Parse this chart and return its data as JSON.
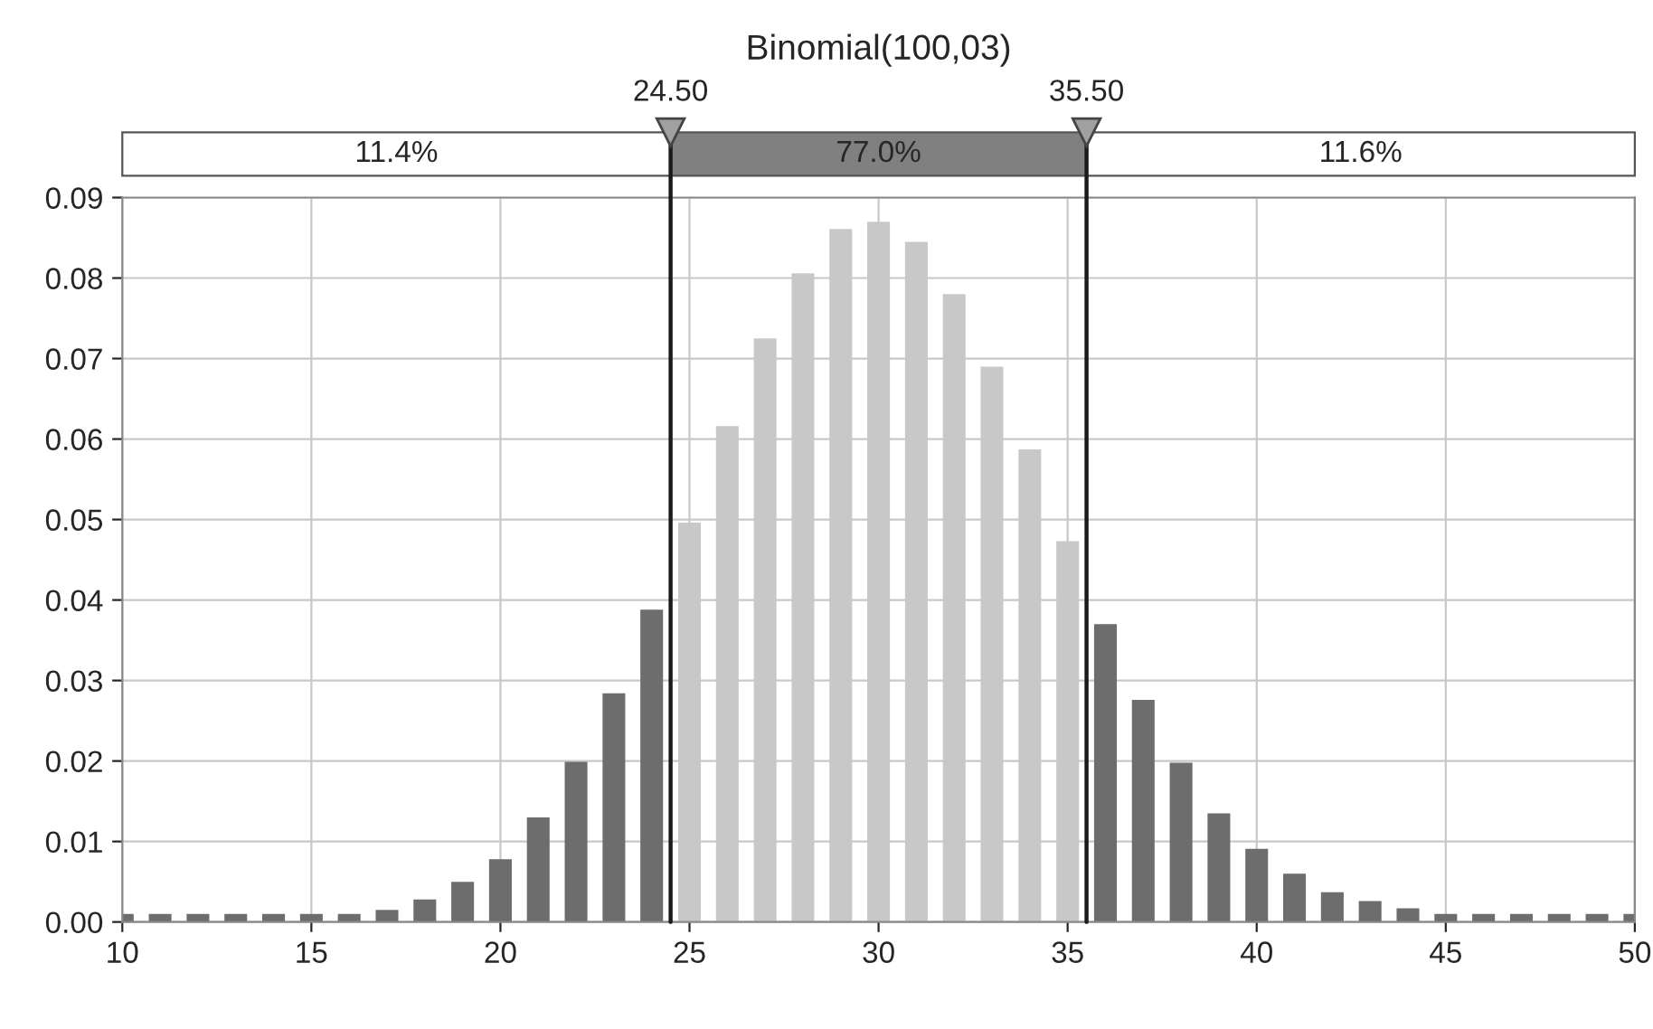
{
  "chart_data": {
    "type": "bar",
    "title": "Binomial(100,03)",
    "x": [
      10,
      11,
      12,
      13,
      14,
      15,
      16,
      17,
      18,
      19,
      20,
      21,
      22,
      23,
      24,
      25,
      26,
      27,
      28,
      29,
      30,
      31,
      32,
      33,
      34,
      35,
      36,
      37,
      38,
      39,
      40,
      41,
      42,
      43,
      44,
      45,
      46,
      47,
      48,
      49,
      50
    ],
    "values": [
      0.001,
      0.001,
      0.001,
      0.001,
      0.001,
      0.001,
      0.001,
      0.0015,
      0.0028,
      0.005,
      0.0078,
      0.013,
      0.0199,
      0.0284,
      0.0388,
      0.0496,
      0.0616,
      0.0725,
      0.0806,
      0.0861,
      0.087,
      0.0845,
      0.078,
      0.069,
      0.0587,
      0.0473,
      0.037,
      0.0276,
      0.0198,
      0.0135,
      0.0091,
      0.006,
      0.0037,
      0.0026,
      0.0017,
      0.001,
      0.001,
      0.001,
      0.001,
      0.001,
      0.001
    ],
    "colors": [
      "#6d6d6d",
      "#6d6d6d",
      "#6d6d6d",
      "#6d6d6d",
      "#6d6d6d",
      "#6d6d6d",
      "#6d6d6d",
      "#6d6d6d",
      "#6d6d6d",
      "#6d6d6d",
      "#6d6d6d",
      "#6d6d6d",
      "#6d6d6d",
      "#6d6d6d",
      "#6d6d6d",
      "#c8c8c8",
      "#c8c8c8",
      "#c8c8c8",
      "#c8c8c8",
      "#c8c8c8",
      "#c8c8c8",
      "#c8c8c8",
      "#c8c8c8",
      "#c8c8c8",
      "#c8c8c8",
      "#c8c8c8",
      "#6d6d6d",
      "#6d6d6d",
      "#6d6d6d",
      "#6d6d6d",
      "#6d6d6d",
      "#6d6d6d",
      "#6d6d6d",
      "#6d6d6d",
      "#6d6d6d",
      "#6d6d6d",
      "#6d6d6d",
      "#6d6d6d",
      "#6d6d6d",
      "#6d6d6d",
      "#6d6d6d"
    ],
    "xlim": [
      10,
      50
    ],
    "xticks": [
      10,
      15,
      20,
      25,
      30,
      35,
      40,
      45,
      50
    ],
    "ylim": [
      0,
      0.09
    ],
    "yticks": [
      {
        "value": 0,
        "label": "0.00"
      },
      {
        "value": 0.01,
        "label": "0.01"
      },
      {
        "value": 0.02,
        "label": "0.02"
      },
      {
        "value": 0.03,
        "label": "0.03"
      },
      {
        "value": 0.04,
        "label": "0.04"
      },
      {
        "value": 0.05,
        "label": "0.05"
      },
      {
        "value": 0.06,
        "label": "0.06"
      },
      {
        "value": 0.07,
        "label": "0.07"
      },
      {
        "value": 0.08,
        "label": "0.08"
      },
      {
        "value": 0.09,
        "label": "0.09"
      }
    ],
    "ref_lines": [
      {
        "axis": "x",
        "value": 24.5,
        "label": "24.50",
        "color": "#1a1a1a"
      },
      {
        "axis": "x",
        "value": 35.5,
        "label": "35.50",
        "color": "#1a1a1a"
      }
    ],
    "annotations": [
      "11.4%",
      "77.0%",
      "11.6%"
    ],
    "grid": true
  }
}
